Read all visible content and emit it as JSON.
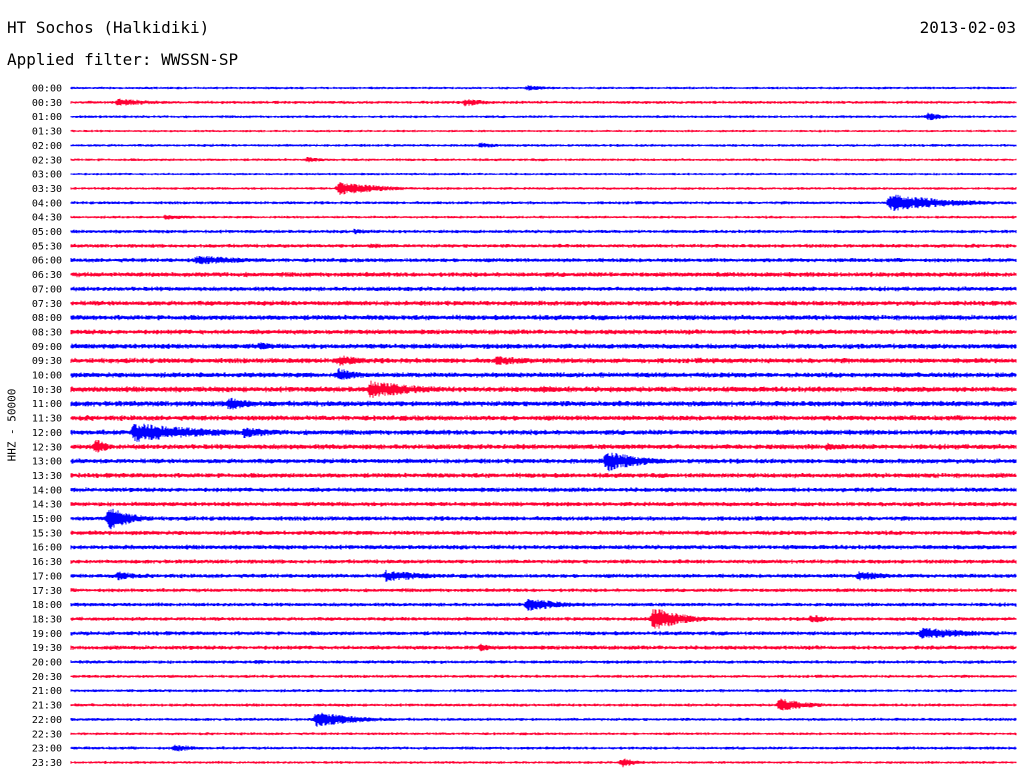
{
  "header": {
    "station": "HT Sochos (Halkidiki)",
    "date": "2013-02-03",
    "filter": "Applied filter: WWSSN-SP"
  },
  "chart_data": {
    "type": "line",
    "title": "HT Sochos (Halkidiki)",
    "ylabel": "HHZ - 50000",
    "xlabel": "",
    "row_labels": [
      "00:00",
      "00:30",
      "01:00",
      "01:30",
      "02:00",
      "02:30",
      "03:00",
      "03:30",
      "04:00",
      "04:30",
      "05:00",
      "05:30",
      "06:00",
      "06:30",
      "07:00",
      "07:30",
      "08:00",
      "08:30",
      "09:00",
      "09:30",
      "10:00",
      "10:30",
      "11:00",
      "11:30",
      "12:00",
      "12:30",
      "13:00",
      "13:30",
      "14:00",
      "14:30",
      "15:00",
      "15:30",
      "16:00",
      "16:30",
      "17:00",
      "17:30",
      "18:00",
      "18:30",
      "19:00",
      "19:30",
      "20:00",
      "20:30",
      "21:00",
      "21:30",
      "22:00",
      "22:30",
      "23:00",
      "23:30"
    ],
    "trace_minutes": 30,
    "colors": [
      "#0000ff",
      "#ff0033"
    ],
    "noise_level": [
      1.5,
      1.8,
      1.6,
      1.4,
      1.6,
      1.6,
      1.4,
      1.6,
      1.8,
      1.6,
      2.0,
      2.2,
      2.4,
      2.8,
      2.6,
      2.8,
      3.0,
      2.8,
      3.0,
      3.0,
      3.0,
      3.2,
      3.2,
      3.0,
      3.0,
      3.0,
      2.8,
      2.8,
      2.6,
      2.6,
      2.6,
      2.6,
      2.6,
      2.4,
      2.4,
      2.2,
      2.2,
      2.2,
      2.4,
      2.4,
      2.0,
      1.8,
      1.8,
      1.8,
      1.8,
      1.6,
      1.8,
      1.6
    ],
    "events": [
      {
        "row": 0,
        "minute": 14.5,
        "amp": 3,
        "dur": 0.8
      },
      {
        "row": 1,
        "minute": 1.5,
        "amp": 4,
        "dur": 1.4
      },
      {
        "row": 1,
        "minute": 12.5,
        "amp": 4,
        "dur": 1.0
      },
      {
        "row": 2,
        "minute": 27.2,
        "amp": 4,
        "dur": 0.7
      },
      {
        "row": 4,
        "minute": 13.0,
        "amp": 3,
        "dur": 0.8
      },
      {
        "row": 5,
        "minute": 7.5,
        "amp": 3,
        "dur": 0.7
      },
      {
        "row": 7,
        "minute": 8.5,
        "amp": 7,
        "dur": 1.4
      },
      {
        "row": 8,
        "minute": 26.0,
        "amp": 9,
        "dur": 2.0
      },
      {
        "row": 9,
        "minute": 3.0,
        "amp": 3,
        "dur": 1.0
      },
      {
        "row": 10,
        "minute": 9.0,
        "amp": 3,
        "dur": 0.8
      },
      {
        "row": 11,
        "minute": 9.5,
        "amp": 3,
        "dur": 0.8
      },
      {
        "row": 12,
        "minute": 4.0,
        "amp": 5,
        "dur": 2.0
      },
      {
        "row": 16,
        "minute": 19.5,
        "amp": 3,
        "dur": 1.0
      },
      {
        "row": 18,
        "minute": 6.0,
        "amp": 5,
        "dur": 0.5
      },
      {
        "row": 19,
        "minute": 8.5,
        "amp": 6,
        "dur": 1.0
      },
      {
        "row": 19,
        "minute": 13.5,
        "amp": 5,
        "dur": 1.6
      },
      {
        "row": 20,
        "minute": 8.5,
        "amp": 7,
        "dur": 0.8
      },
      {
        "row": 21,
        "minute": 9.5,
        "amp": 9,
        "dur": 1.8
      },
      {
        "row": 21,
        "minute": 15.0,
        "amp": 4,
        "dur": 1.2
      },
      {
        "row": 22,
        "minute": 5.0,
        "amp": 7,
        "dur": 1.0
      },
      {
        "row": 24,
        "minute": 2.0,
        "amp": 10,
        "dur": 2.5
      },
      {
        "row": 24,
        "minute": 5.5,
        "amp": 6,
        "dur": 1.2
      },
      {
        "row": 25,
        "minute": 0.8,
        "amp": 8,
        "dur": 0.4
      },
      {
        "row": 25,
        "minute": 24.0,
        "amp": 4,
        "dur": 1.0
      },
      {
        "row": 26,
        "minute": 17.0,
        "amp": 11,
        "dur": 1.2
      },
      {
        "row": 30,
        "minute": 1.2,
        "amp": 12,
        "dur": 0.8
      },
      {
        "row": 34,
        "minute": 1.5,
        "amp": 5,
        "dur": 0.8
      },
      {
        "row": 34,
        "minute": 10.0,
        "amp": 6,
        "dur": 1.6
      },
      {
        "row": 34,
        "minute": 25.0,
        "amp": 5,
        "dur": 1.2
      },
      {
        "row": 36,
        "minute": 14.5,
        "amp": 7,
        "dur": 1.2
      },
      {
        "row": 37,
        "minute": 18.5,
        "amp": 12,
        "dur": 1.0
      },
      {
        "row": 37,
        "minute": 23.5,
        "amp": 5,
        "dur": 0.6
      },
      {
        "row": 38,
        "minute": 27.0,
        "amp": 6,
        "dur": 2.0
      },
      {
        "row": 39,
        "minute": 13.0,
        "amp": 4,
        "dur": 0.6
      },
      {
        "row": 40,
        "minute": 5.9,
        "amp": 3,
        "dur": 0.5
      },
      {
        "row": 43,
        "minute": 22.5,
        "amp": 7,
        "dur": 1.0
      },
      {
        "row": 44,
        "minute": 7.8,
        "amp": 8,
        "dur": 1.4
      },
      {
        "row": 46,
        "minute": 3.3,
        "amp": 4,
        "dur": 0.8
      },
      {
        "row": 47,
        "minute": 17.5,
        "amp": 5,
        "dur": 0.5
      }
    ]
  }
}
